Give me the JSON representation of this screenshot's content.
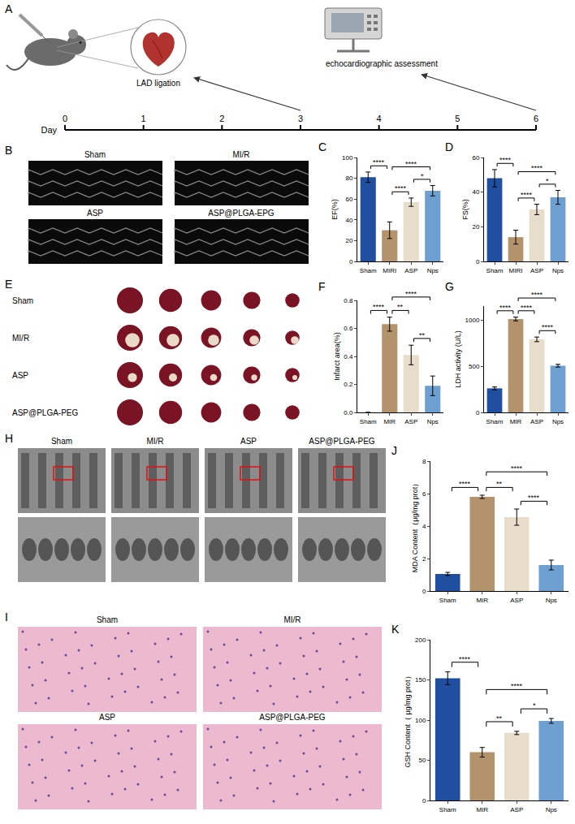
{
  "schematic": {
    "letter": "A",
    "labels": [
      "LAD ligation",
      "echocardiographic assessment"
    ],
    "timeline": {
      "title": "Day",
      "ticks": [
        0,
        1,
        2,
        3,
        4,
        5,
        6
      ],
      "arrows_at": [
        3,
        6
      ]
    }
  },
  "image_panels": [
    {
      "letter": "B",
      "labels": [
        "Sham",
        "MI/R",
        "ASP",
        "ASP@PLGA-EPG"
      ]
    },
    {
      "letter": "E",
      "labels": [
        "Sham",
        "MI/R",
        "ASP",
        "ASP@PLGA-PEG"
      ]
    },
    {
      "letter": "H",
      "labels": [
        "Sham",
        "MI/R",
        "ASP",
        "ASP@PLGA-PEG"
      ]
    },
    {
      "letter": "I",
      "labels": [
        "Sham",
        "MI/R",
        "ASP",
        "ASP@PLGA-PEG"
      ]
    }
  ],
  "chart_data": [
    {
      "panel": "C",
      "type": "bar",
      "y_label": "EF(%)",
      "categories": [
        "Sham",
        "MIRI",
        "ASP",
        "Nps"
      ],
      "values": [
        81,
        30,
        57,
        68
      ],
      "errors": [
        5,
        8,
        4,
        5
      ],
      "colors": [
        "#1f4f9e",
        "#b3936c",
        "#e8ddcb",
        "#6d9fd0"
      ],
      "ylim": [
        0,
        100
      ],
      "yticks": [
        0,
        20,
        40,
        60,
        80,
        100
      ],
      "grid": false,
      "comparisons": [
        {
          "pair": [
            "Sham",
            "MIRI"
          ],
          "label": "****"
        },
        {
          "pair": [
            "MIRI",
            "ASP"
          ],
          "label": "****"
        },
        {
          "pair": [
            "MIRI",
            "Nps"
          ],
          "label": "****"
        },
        {
          "pair": [
            "ASP",
            "Nps"
          ],
          "label": "*"
        }
      ]
    },
    {
      "panel": "D",
      "type": "bar",
      "y_label": "FS(%)",
      "categories": [
        "Sham",
        "MIRI",
        "ASP",
        "Nps"
      ],
      "values": [
        48,
        14,
        30,
        37
      ],
      "errors": [
        5,
        4,
        3,
        4
      ],
      "colors": [
        "#1f4f9e",
        "#b3936c",
        "#e8ddcb",
        "#6d9fd0"
      ],
      "ylim": [
        0,
        60
      ],
      "yticks": [
        0,
        20,
        40,
        60
      ],
      "grid": false,
      "comparisons": [
        {
          "pair": [
            "Sham",
            "MIRI"
          ],
          "label": "****"
        },
        {
          "pair": [
            "MIRI",
            "ASP"
          ],
          "label": "****"
        },
        {
          "pair": [
            "MIRI",
            "Nps"
          ],
          "label": "****"
        },
        {
          "pair": [
            "ASP",
            "Nps"
          ],
          "label": "*"
        }
      ]
    },
    {
      "panel": "F",
      "type": "bar",
      "y_label": "Infarct area(%)",
      "categories": [
        "Sham",
        "MIR",
        "ASP",
        "Nps"
      ],
      "values": [
        0,
        0.63,
        0.41,
        0.19
      ],
      "errors": [
        0,
        0.05,
        0.07,
        0.07
      ],
      "colors": [
        "#1f4f9e",
        "#b3936c",
        "#e8ddcb",
        "#6d9fd0"
      ],
      "ylim": [
        0,
        0.8
      ],
      "yticks": [
        {
          "value": 0,
          "label": "0.0"
        },
        {
          "value": 0.2,
          "label": "0.2"
        },
        {
          "value": 0.4,
          "label": "0.4"
        },
        {
          "value": 0.6,
          "label": "0.6"
        },
        {
          "value": 0.8,
          "label": "0.8"
        }
      ],
      "grid": false,
      "comparisons": [
        {
          "pair": [
            "Sham",
            "MIR"
          ],
          "label": "****"
        },
        {
          "pair": [
            "MIR",
            "ASP"
          ],
          "label": "**"
        },
        {
          "pair": [
            "MIR",
            "Nps"
          ],
          "label": "****"
        },
        {
          "pair": [
            "ASP",
            "Nps"
          ],
          "label": "**"
        }
      ]
    },
    {
      "panel": "G",
      "type": "bar",
      "y_label": "LDH activity (U/L)",
      "categories": [
        "Sham",
        "MIR",
        "ASP",
        "Nps"
      ],
      "values": [
        260,
        1010,
        790,
        505
      ],
      "errors": [
        15,
        20,
        25,
        15
      ],
      "colors": [
        "#1f4f9e",
        "#b3936c",
        "#e8ddcb",
        "#6d9fd0"
      ],
      "ylim": [
        0,
        1150
      ],
      "yticks": [
        0,
        500,
        1000
      ],
      "grid": false,
      "comparisons": [
        {
          "pair": [
            "Sham",
            "MIR"
          ],
          "label": "****"
        },
        {
          "pair": [
            "MIR",
            "ASP"
          ],
          "label": "****"
        },
        {
          "pair": [
            "MIR",
            "Nps"
          ],
          "label": "****"
        },
        {
          "pair": [
            "ASP",
            "Nps"
          ],
          "label": "****"
        }
      ]
    },
    {
      "panel": "J",
      "type": "bar",
      "y_label": "MDA Content（μg/mg prot）",
      "categories": [
        "Sham",
        "MIR",
        "ASP",
        "Nps"
      ],
      "values": [
        1.05,
        5.8,
        4.55,
        1.6
      ],
      "errors": [
        0.1,
        0.1,
        0.5,
        0.3
      ],
      "colors": [
        "#1f4f9e",
        "#b3936c",
        "#e8ddcb",
        "#6d9fd0"
      ],
      "ylim": [
        0,
        8
      ],
      "yticks": [
        0,
        2,
        4,
        6,
        8
      ],
      "grid": false,
      "comparisons": [
        {
          "pair": [
            "Sham",
            "MIR"
          ],
          "label": "****"
        },
        {
          "pair": [
            "MIR",
            "ASP"
          ],
          "label": "**"
        },
        {
          "pair": [
            "MIR",
            "Nps"
          ],
          "label": "****"
        },
        {
          "pair": [
            "ASP",
            "Nps"
          ],
          "label": "****"
        }
      ]
    },
    {
      "panel": "K",
      "type": "bar",
      "y_label": "GSH Content（ μg/mg prot）",
      "categories": [
        "Sham",
        "MIR",
        "ASP",
        "Nps"
      ],
      "values": [
        152,
        60,
        84,
        99
      ],
      "errors": [
        8,
        6,
        2,
        3
      ],
      "colors": [
        "#1f4f9e",
        "#b3936c",
        "#e8ddcb",
        "#6d9fd0"
      ],
      "ylim": [
        0,
        200
      ],
      "yticks": [
        0,
        50,
        100,
        150,
        200
      ],
      "grid": false,
      "comparisons": [
        {
          "pair": [
            "Sham",
            "MIR"
          ],
          "label": "****"
        },
        {
          "pair": [
            "MIR",
            "ASP"
          ],
          "label": "**"
        },
        {
          "pair": [
            "MIR",
            "Nps"
          ],
          "label": "****"
        },
        {
          "pair": [
            "ASP",
            "Nps"
          ],
          "label": "*"
        }
      ]
    }
  ]
}
